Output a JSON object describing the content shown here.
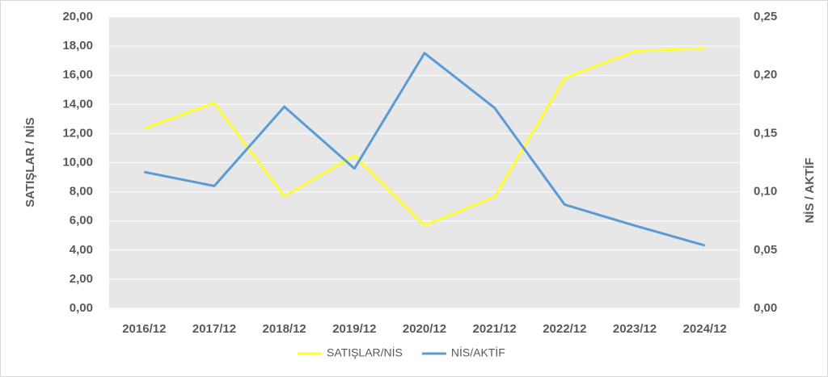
{
  "chart_data": {
    "type": "line",
    "categories": [
      "2016/12",
      "2017/12",
      "2018/12",
      "2019/12",
      "2020/12",
      "2021/12",
      "2022/12",
      "2023/12",
      "2024/12"
    ],
    "series": [
      {
        "name": "SATIŞLAR/NİS",
        "color": "#ffff33",
        "values": [
          12.35,
          14.1,
          7.7,
          10.5,
          5.7,
          7.65,
          15.8,
          17.65,
          17.85
        ]
      },
      {
        "name": "NİS/AKTİF",
        "color": "#5b9bd5",
        "axis": "y2",
        "values": [
          0.117,
          0.105,
          0.173,
          0.12,
          0.219,
          0.172,
          0.089,
          0.071,
          0.054
        ]
      }
    ],
    "ylabel": "SATIŞLAR / NİS",
    "y2label": "NİS / AKTİF",
    "ylim": [
      0,
      20
    ],
    "yticks": [
      {
        "value": 0,
        "label": "0,00"
      },
      {
        "value": 2,
        "label": "2,00"
      },
      {
        "value": 4,
        "label": "4,00"
      },
      {
        "value": 6,
        "label": "6,00"
      },
      {
        "value": 8,
        "label": "8,00"
      },
      {
        "value": 10,
        "label": "10,00"
      },
      {
        "value": 12,
        "label": "12,00"
      },
      {
        "value": 14,
        "label": "14,00"
      },
      {
        "value": 16,
        "label": "16,00"
      },
      {
        "value": 18,
        "label": "18,00"
      },
      {
        "value": 20,
        "label": "20,00"
      }
    ],
    "y2lim": [
      0,
      0.25
    ],
    "y2ticks": [
      {
        "value": 0,
        "label": "0,00"
      },
      {
        "value": 0.05,
        "label": "0,05"
      },
      {
        "value": 0.1,
        "label": "0,10"
      },
      {
        "value": 0.15,
        "label": "0,15"
      },
      {
        "value": 0.2,
        "label": "0,20"
      },
      {
        "value": 0.25,
        "label": "0,25"
      }
    ],
    "grid": true,
    "legend": "bottom"
  }
}
